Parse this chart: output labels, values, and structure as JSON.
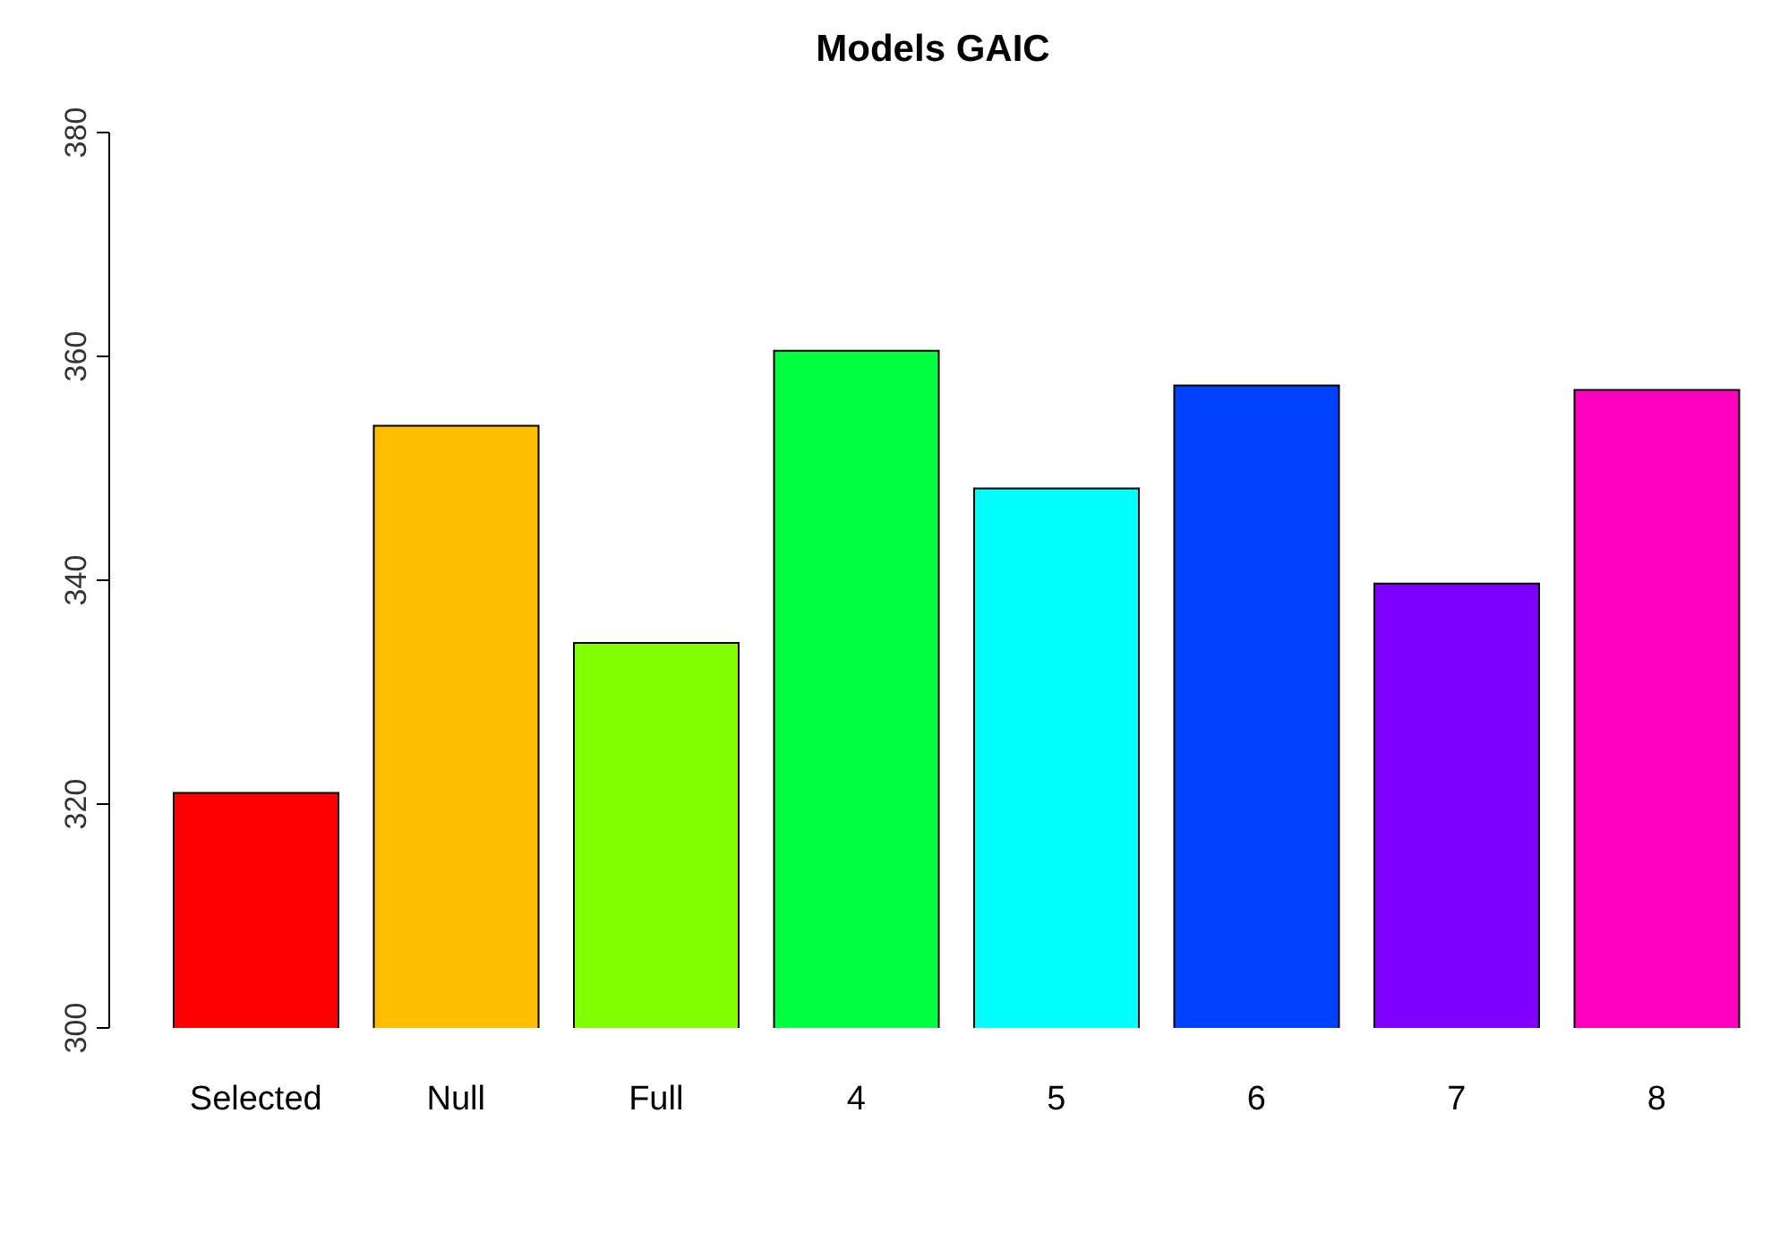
{
  "chart_data": {
    "type": "bar",
    "title": "Models GAIC",
    "categories": [
      "Selected",
      "Null",
      "Full",
      "4",
      "5",
      "6",
      "7",
      "8"
    ],
    "values": [
      321,
      353.8,
      334.4,
      360.5,
      348.2,
      357.4,
      339.7,
      357
    ],
    "colors": [
      "#ff0000",
      "#ffbf00",
      "#80ff00",
      "#00ff40",
      "#00ffff",
      "#0040ff",
      "#8000ff",
      "#ff00bf"
    ],
    "ylim": [
      300,
      380
    ],
    "yticks": [
      300,
      320,
      340,
      360,
      380
    ],
    "grid": false,
    "legend": false
  }
}
